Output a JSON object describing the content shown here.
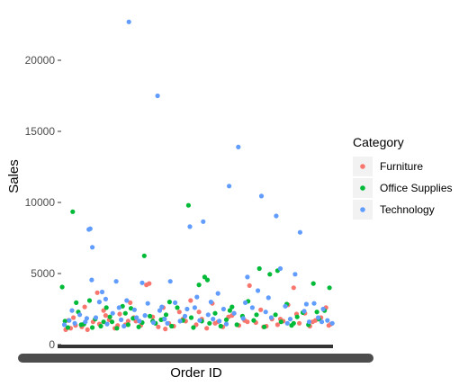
{
  "chart_data": {
    "type": "scatter",
    "title": "",
    "xlabel": "Order ID",
    "ylabel": "Sales",
    "y_ticks": [
      "0",
      "5000",
      "10000",
      "15000",
      "20000"
    ],
    "ylim": [
      -100,
      23200
    ],
    "grid": false,
    "legend": {
      "title": "Category",
      "placement": "right"
    },
    "series": [
      {
        "name": "Furniture",
        "color": "#F8766D",
        "points": [
          [
            9,
            1050
          ],
          [
            16,
            1150
          ],
          [
            23,
            1350
          ],
          [
            32,
            1250
          ],
          [
            40,
            1050
          ],
          [
            48,
            1600
          ],
          [
            57,
            1450
          ],
          [
            63,
            2400
          ],
          [
            71,
            1750
          ],
          [
            79,
            1150
          ],
          [
            86,
            2150
          ],
          [
            94,
            1400
          ],
          [
            101,
            2950
          ],
          [
            109,
            1650
          ],
          [
            116,
            1350
          ],
          [
            124,
            4200
          ],
          [
            133,
            1950
          ],
          [
            141,
            1250
          ],
          [
            148,
            2600
          ],
          [
            156,
            1500
          ],
          [
            163,
            1300
          ],
          [
            171,
            2300
          ],
          [
            180,
            1650
          ],
          [
            187,
            3100
          ],
          [
            195,
            1400
          ],
          [
            203,
            1800
          ],
          [
            210,
            1150
          ],
          [
            218,
            2900
          ],
          [
            226,
            1600
          ],
          [
            233,
            1250
          ],
          [
            241,
            1950
          ],
          [
            249,
            2200
          ],
          [
            256,
            1350
          ],
          [
            264,
            1700
          ],
          [
            271,
            4150
          ],
          [
            280,
            1550
          ],
          [
            287,
            2450
          ],
          [
            295,
            1300
          ],
          [
            303,
            1800
          ],
          [
            311,
            1400
          ],
          [
            319,
            1650
          ],
          [
            326,
            2800
          ],
          [
            334,
            4000
          ],
          [
            342,
            1500
          ],
          [
            350,
            2200
          ],
          [
            357,
            1300
          ],
          [
            365,
            1700
          ],
          [
            373,
            1900
          ],
          [
            380,
            2600
          ],
          [
            387,
            1450
          ],
          [
            13,
            1700
          ],
          [
            36,
            2650
          ],
          [
            54,
            3650
          ],
          [
            83,
            1350
          ],
          [
            106,
            1900
          ],
          [
            128,
            4300
          ],
          [
            151,
            1100
          ],
          [
            176,
            1800
          ],
          [
            199,
            2300
          ],
          [
            222,
            1500
          ],
          [
            246,
            2050
          ],
          [
            268,
            1600
          ],
          [
            291,
            1250
          ],
          [
            315,
            1800
          ],
          [
            338,
            2150
          ],
          [
            361,
            1600
          ],
          [
            384,
            1350
          ],
          [
            20,
            1900
          ],
          [
            66,
            2050
          ],
          [
            98,
            1650
          ]
        ]
      },
      {
        "name": "Office Supplies",
        "color": "#00BA38",
        "points": [
          [
            4,
            4050
          ],
          [
            12,
            1200
          ],
          [
            19,
            9350
          ],
          [
            27,
            2300
          ],
          [
            35,
            1450
          ],
          [
            43,
            3100
          ],
          [
            51,
            1800
          ],
          [
            59,
            1300
          ],
          [
            67,
            2600
          ],
          [
            75,
            1600
          ],
          [
            82,
            1150
          ],
          [
            90,
            2700
          ],
          [
            98,
            1400
          ],
          [
            105,
            1850
          ],
          [
            113,
            1250
          ],
          [
            121,
            6250
          ],
          [
            129,
            2000
          ],
          [
            137,
            1500
          ],
          [
            145,
            1750
          ],
          [
            152,
            2100
          ],
          [
            160,
            1300
          ],
          [
            168,
            2600
          ],
          [
            176,
            1700
          ],
          [
            184,
            9800
          ],
          [
            191,
            1200
          ],
          [
            199,
            4200
          ],
          [
            207,
            4750
          ],
          [
            214,
            1500
          ],
          [
            222,
            2200
          ],
          [
            230,
            1300
          ],
          [
            238,
            1750
          ],
          [
            246,
            2650
          ],
          [
            253,
            1400
          ],
          [
            261,
            2000
          ],
          [
            269,
            3050
          ],
          [
            277,
            1700
          ],
          [
            285,
            5350
          ],
          [
            292,
            1250
          ],
          [
            300,
            4950
          ],
          [
            308,
            2100
          ],
          [
            316,
            1600
          ],
          [
            324,
            2850
          ],
          [
            331,
            1350
          ],
          [
            339,
            1950
          ],
          [
            347,
            2250
          ],
          [
            355,
            1400
          ],
          [
            362,
            4300
          ],
          [
            370,
            1800
          ],
          [
            378,
            2400
          ],
          [
            385,
            4000
          ],
          [
            24,
            2950
          ],
          [
            47,
            1200
          ],
          [
            72,
            1950
          ],
          [
            102,
            2550
          ],
          [
            133,
            1650
          ],
          [
            157,
            3000
          ],
          [
            188,
            1900
          ],
          [
            211,
            4550
          ],
          [
            243,
            2400
          ],
          [
            281,
            2100
          ],
          [
            311,
            5200
          ],
          [
            334,
            1500
          ],
          [
            367,
            2300
          ],
          [
            8,
            1650
          ],
          [
            31,
            1400
          ],
          [
            63,
            1600
          ],
          [
            94,
            2200
          ],
          [
            118,
            1550
          ],
          [
            149,
            1800
          ],
          [
            203,
            1650
          ]
        ]
      },
      {
        "name": "Technology",
        "color": "#619CFF",
        "points": [
          [
            7,
            1400
          ],
          [
            14,
            1700
          ],
          [
            22,
            1500
          ],
          [
            29,
            2100
          ],
          [
            37,
            1600
          ],
          [
            44,
            8150
          ],
          [
            47,
            6850
          ],
          [
            46,
            4550
          ],
          [
            52,
            1900
          ],
          [
            57,
            3000
          ],
          [
            61,
            3700
          ],
          [
            68,
            1450
          ],
          [
            76,
            2200
          ],
          [
            81,
            4450
          ],
          [
            88,
            1750
          ],
          [
            96,
            3100
          ],
          [
            99,
            22700
          ],
          [
            107,
            2450
          ],
          [
            114,
            1650
          ],
          [
            118,
            4350
          ],
          [
            126,
            2900
          ],
          [
            134,
            1550
          ],
          [
            140,
            17500
          ],
          [
            143,
            2400
          ],
          [
            150,
            1800
          ],
          [
            158,
            4450
          ],
          [
            165,
            2950
          ],
          [
            172,
            1650
          ],
          [
            179,
            2000
          ],
          [
            186,
            8300
          ],
          [
            193,
            2600
          ],
          [
            200,
            1700
          ],
          [
            205,
            8650
          ],
          [
            212,
            2100
          ],
          [
            219,
            1800
          ],
          [
            226,
            3600
          ],
          [
            234,
            2500
          ],
          [
            242,
            11150
          ],
          [
            249,
            2200
          ],
          [
            255,
            13900
          ],
          [
            262,
            1850
          ],
          [
            268,
            4750
          ],
          [
            275,
            2600
          ],
          [
            283,
            3800
          ],
          [
            288,
            10450
          ],
          [
            294,
            2300
          ],
          [
            302,
            1900
          ],
          [
            309,
            9050
          ],
          [
            315,
            5350
          ],
          [
            322,
            2700
          ],
          [
            329,
            1800
          ],
          [
            336,
            4950
          ],
          [
            343,
            7900
          ],
          [
            349,
            2350
          ],
          [
            356,
            1600
          ],
          [
            363,
            2900
          ],
          [
            369,
            1900
          ],
          [
            376,
            2500
          ],
          [
            382,
            1700
          ],
          [
            389,
            1500
          ],
          [
            42,
            8100
          ],
          [
            66,
            3200
          ],
          [
            92,
            1300
          ],
          [
            122,
            2050
          ],
          [
            154,
            1500
          ],
          [
            182,
            2500
          ],
          [
            216,
            3000
          ],
          [
            238,
            1450
          ],
          [
            265,
            2950
          ],
          [
            298,
            3300
          ],
          [
            325,
            1500
          ],
          [
            352,
            2850
          ],
          [
            374,
            1600
          ],
          [
            18,
            2400
          ],
          [
            39,
            1850
          ],
          [
            85,
            2600
          ],
          [
            110,
            1900
          ],
          [
            146,
            2650
          ],
          [
            196,
            3350
          ],
          [
            228,
            1650
          ]
        ]
      }
    ]
  }
}
